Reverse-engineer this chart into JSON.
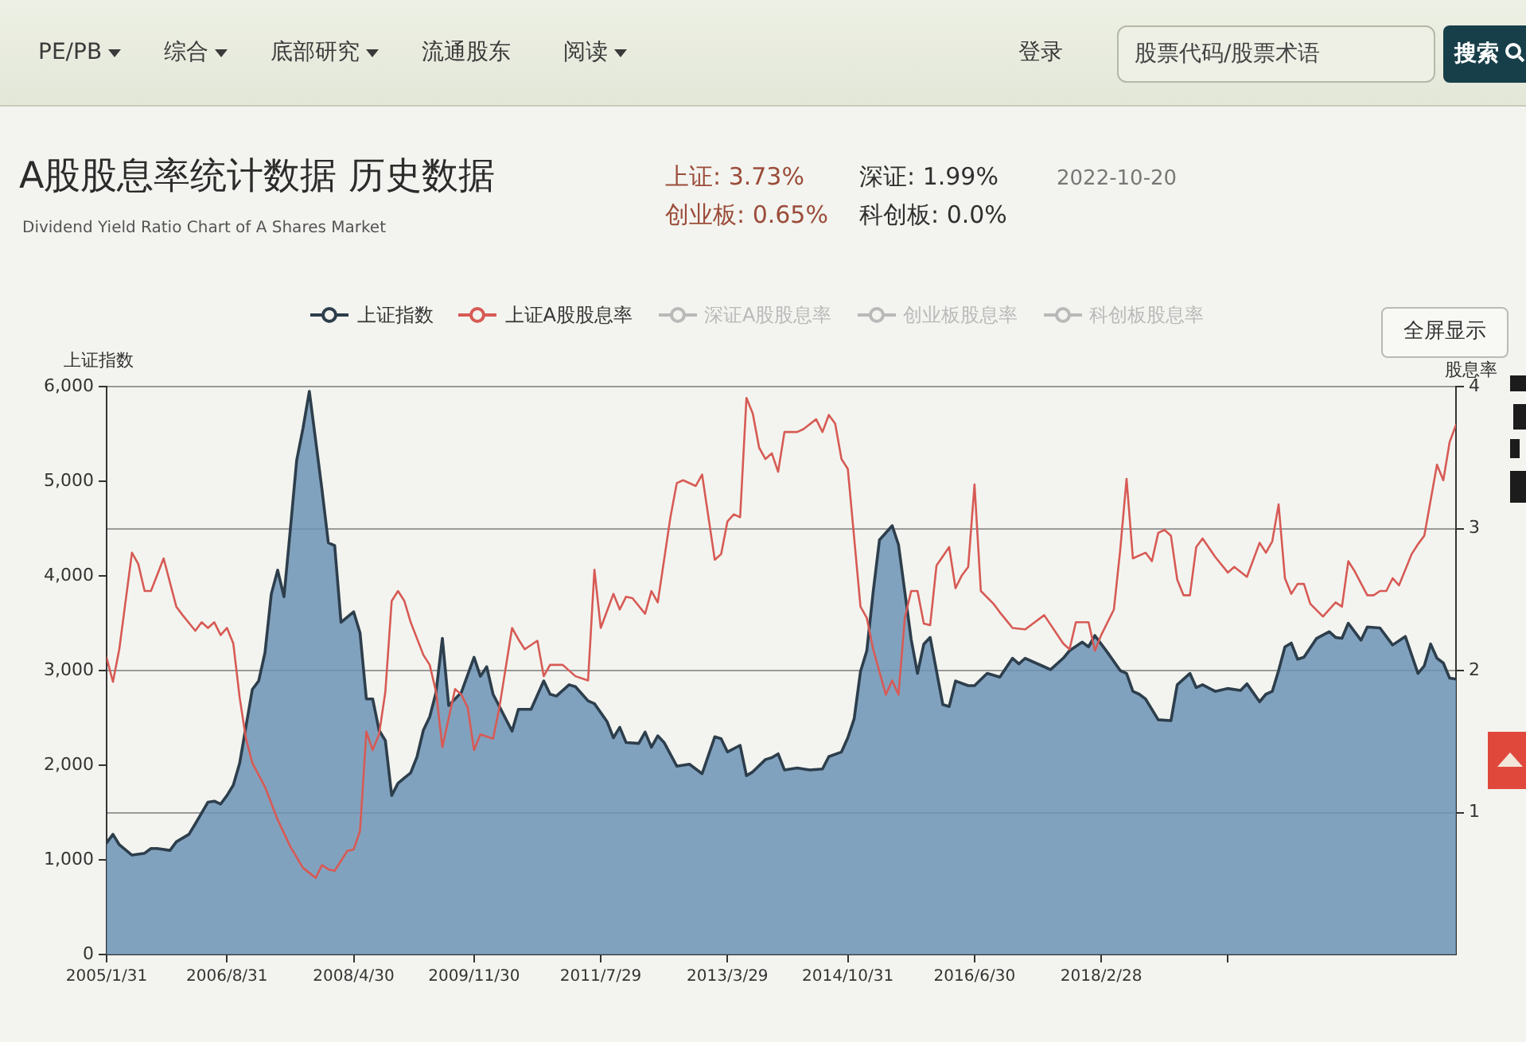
{
  "chart_data": {
    "type": "line",
    "title": "A股股息率统计数据 历史数据",
    "subtitle": "Dividend Yield Ratio Chart of A Shares Market",
    "ylabel": "上证指数",
    "y2label": "股息率",
    "annotations": [
      "PE/PB",
      "综合",
      "底部研究",
      "流通股东",
      "阅读",
      "登录",
      "股票代码/股票术语",
      "搜索",
      "上证: 3.73%",
      "深证: 1.99%",
      "2022-10-20",
      "创业板: 0.65%",
      "科创板: 0.0%",
      "全屏显示"
    ],
    "xlim": [
      "2005-01",
      "2022-10"
    ],
    "xticks": [
      {
        "value": "2005-01",
        "label": "2005/1/31"
      },
      {
        "value": "2006-08",
        "label": "2006/8/31"
      },
      {
        "value": "2008-04",
        "label": "2008/4/30"
      },
      {
        "value": "2009-11",
        "label": "2009/11/30"
      },
      {
        "value": "2011-07",
        "label": "2011/7/29"
      },
      {
        "value": "2013-03",
        "label": "2013/3/29"
      },
      {
        "value": "2014-10",
        "label": "2014/10/31"
      },
      {
        "value": "2016-06",
        "label": "2016/6/30"
      },
      {
        "value": "2018-02",
        "label": "2018/2/28"
      },
      {
        "value": "2019-10",
        "label": null
      }
    ],
    "ylim": [
      0,
      6000
    ],
    "yticks": [
      0,
      {
        "value": 1000,
        "label": "1,000"
      },
      {
        "value": 2000,
        "label": "2,000"
      },
      {
        "value": 3000,
        "label": "3,000"
      },
      {
        "value": 4000,
        "label": "4,000"
      },
      {
        "value": 5000,
        "label": "5,000"
      },
      {
        "value": 6000,
        "label": "6,000"
      }
    ],
    "y2lim": [
      0,
      4
    ],
    "y2ticks": [
      1,
      2,
      3,
      4
    ],
    "grid": "y2",
    "legend": "top",
    "series": [
      {
        "name": "上证指数",
        "type": "area",
        "color": "#6c93b5",
        "x": [
          "2005-01",
          "2005-02",
          "2005-03",
          "2005-05",
          "2005-07",
          "2005-08",
          "2005-09",
          "2005-11",
          "2005-12",
          "2006-02",
          "2006-03",
          "2006-05",
          "2006-06",
          "2006-07",
          "2006-08",
          "2006-09",
          "2006-10",
          "2006-11",
          "2006-12",
          "2007-01",
          "2007-02",
          "2007-03",
          "2007-04",
          "2007-05",
          "2007-06",
          "2007-07",
          "2007-08",
          "2007-09",
          "2007-11",
          "2007-12",
          "2008-01",
          "2008-02",
          "2008-04",
          "2008-05",
          "2008-06",
          "2008-07",
          "2008-08",
          "2008-09",
          "2008-10",
          "2008-11",
          "2009-01",
          "2009-02",
          "2009-03",
          "2009-04",
          "2009-05",
          "2009-06",
          "2009-07",
          "2009-09",
          "2009-11",
          "2009-12",
          "2010-01",
          "2010-02",
          "2010-05",
          "2010-06",
          "2010-08",
          "2010-10",
          "2010-11",
          "2010-12",
          "2011-02",
          "2011-03",
          "2011-05",
          "2011-06",
          "2011-08",
          "2011-09",
          "2011-10",
          "2011-11",
          "2012-01",
          "2012-02",
          "2012-03",
          "2012-04",
          "2012-05",
          "2012-07",
          "2012-09",
          "2012-11",
          "2013-01",
          "2013-02",
          "2013-03",
          "2013-05",
          "2013-06",
          "2013-07",
          "2013-09",
          "2013-10",
          "2013-11",
          "2013-12",
          "2014-02",
          "2014-04",
          "2014-06",
          "2014-07",
          "2014-09",
          "2014-10",
          "2014-11",
          "2014-12",
          "2015-01",
          "2015-02",
          "2015-03",
          "2015-05",
          "2015-06",
          "2015-08",
          "2015-09",
          "2015-10",
          "2015-11",
          "2016-01",
          "2016-02",
          "2016-03",
          "2016-05",
          "2016-06",
          "2016-08",
          "2016-10",
          "2016-12",
          "2017-01",
          "2017-02",
          "2017-05",
          "2017-06",
          "2017-08",
          "2017-09",
          "2017-11",
          "2017-12",
          "2018-01",
          "2018-03",
          "2018-05",
          "2018-06",
          "2018-07",
          "2018-08",
          "2018-09",
          "2018-11",
          "2019-01",
          "2019-02",
          "2019-04",
          "2019-05",
          "2019-06",
          "2019-08",
          "2019-10",
          "2019-12",
          "2020-01",
          "2020-03",
          "2020-04",
          "2020-05",
          "2020-06",
          "2020-07",
          "2020-08",
          "2020-09",
          "2020-10",
          "2020-12",
          "2021-02",
          "2021-03",
          "2021-04",
          "2021-05",
          "2021-07",
          "2021-08",
          "2021-10",
          "2021-12",
          "2022-02",
          "2022-04",
          "2022-05",
          "2022-06",
          "2022-07",
          "2022-08",
          "2022-09",
          "2022-10"
        ],
        "values": [
          1180,
          1270,
          1160,
          1050,
          1070,
          1120,
          1120,
          1100,
          1190,
          1270,
          1380,
          1610,
          1620,
          1590,
          1680,
          1790,
          2020,
          2410,
          2800,
          2890,
          3190,
          3810,
          4060,
          3780,
          4490,
          5220,
          5560,
          5950,
          4910,
          4350,
          4320,
          3510,
          3620,
          3400,
          2700,
          2700,
          2370,
          2260,
          1680,
          1810,
          1920,
          2090,
          2370,
          2510,
          2770,
          3340,
          2630,
          2770,
          3140,
          2940,
          3040,
          2750,
          2360,
          2590,
          2590,
          2890,
          2750,
          2730,
          2850,
          2830,
          2680,
          2650,
          2460,
          2290,
          2400,
          2240,
          2230,
          2350,
          2190,
          2310,
          2240,
          1990,
          2010,
          1910,
          2300,
          2280,
          2140,
          2210,
          1890,
          1930,
          2060,
          2080,
          2120,
          1950,
          1970,
          1950,
          1960,
          2090,
          2140,
          2290,
          2490,
          2990,
          3210,
          3830,
          4380,
          4530,
          4330,
          3330,
          2970,
          3280,
          3350,
          2640,
          2620,
          2890,
          2840,
          2840,
          2970,
          2930,
          3130,
          3070,
          3130,
          3040,
          3010,
          3130,
          3210,
          3300,
          3250,
          3370,
          3190,
          3000,
          2970,
          2780,
          2750,
          2700,
          2480,
          2470,
          2850,
          2970,
          2820,
          2850,
          2780,
          2810,
          2790,
          2860,
          2670,
          2750,
          2780,
          3000,
          3250,
          3290,
          3120,
          3140,
          3340,
          3410,
          3350,
          3340,
          3500,
          3320,
          3460,
          3450,
          3270,
          3360,
          2970,
          3050,
          3280,
          3130,
          3080,
          2920,
          2910
        ]
      },
      {
        "name": "上证A股股息率",
        "color": "#d75a55",
        "axis": "y2",
        "x": [
          "2005-01",
          "2005-02",
          "2005-03",
          "2005-05",
          "2005-06",
          "2005-07",
          "2005-08",
          "2005-10",
          "2005-12",
          "2006-01",
          "2006-03",
          "2006-04",
          "2006-05",
          "2006-06",
          "2006-07",
          "2006-08",
          "2006-09",
          "2006-10",
          "2006-11",
          "2006-12",
          "2007-02",
          "2007-04",
          "2007-06",
          "2007-08",
          "2007-10",
          "2007-11",
          "2007-12",
          "2008-01",
          "2008-03",
          "2008-04",
          "2008-05",
          "2008-06",
          "2008-07",
          "2008-08",
          "2008-09",
          "2008-10",
          "2008-11",
          "2008-12",
          "2009-01",
          "2009-03",
          "2009-04",
          "2009-05",
          "2009-06",
          "2009-08",
          "2009-09",
          "2009-10",
          "2009-11",
          "2009-12",
          "2010-02",
          "2010-03",
          "2010-05",
          "2010-06",
          "2010-07",
          "2010-09",
          "2010-10",
          "2010-11",
          "2011-01",
          "2011-03",
          "2011-05",
          "2011-06",
          "2011-07",
          "2011-09",
          "2011-10",
          "2011-11",
          "2011-12",
          "2012-02",
          "2012-03",
          "2012-04",
          "2012-06",
          "2012-07",
          "2012-08",
          "2012-10",
          "2012-11",
          "2013-01",
          "2013-02",
          "2013-03",
          "2013-04",
          "2013-05",
          "2013-06",
          "2013-07",
          "2013-08",
          "2013-09",
          "2013-10",
          "2013-11",
          "2013-12",
          "2014-02",
          "2014-03",
          "2014-05",
          "2014-06",
          "2014-07",
          "2014-08",
          "2014-09",
          "2014-10",
          "2014-12",
          "2015-01",
          "2015-02",
          "2015-04",
          "2015-05",
          "2015-06",
          "2015-07",
          "2015-08",
          "2015-09",
          "2015-10",
          "2015-11",
          "2015-12",
          "2016-02",
          "2016-03",
          "2016-04",
          "2016-05",
          "2016-06",
          "2016-07",
          "2016-09",
          "2016-10",
          "2016-12",
          "2017-02",
          "2017-05",
          "2017-08",
          "2017-09",
          "2017-10",
          "2017-12",
          "2018-01",
          "2018-02",
          "2018-04",
          "2018-05",
          "2018-06",
          "2018-07",
          "2018-09",
          "2018-10",
          "2018-11",
          "2018-12",
          "2019-01",
          "2019-02",
          "2019-03",
          "2019-04",
          "2019-05",
          "2019-06",
          "2019-08",
          "2019-10",
          "2019-11",
          "2020-01",
          "2020-03",
          "2020-04",
          "2020-05",
          "2020-06",
          "2020-07",
          "2020-08",
          "2020-09",
          "2020-10",
          "2020-11",
          "2021-01",
          "2021-03",
          "2021-04",
          "2021-05",
          "2021-06",
          "2021-08",
          "2021-09",
          "2021-10",
          "2021-11",
          "2021-12",
          "2022-01",
          "2022-03",
          "2022-04",
          "2022-05",
          "2022-07",
          "2022-08",
          "2022-09",
          "2022-10"
        ],
        "values": [
          2.09,
          1.92,
          2.15,
          2.83,
          2.75,
          2.56,
          2.56,
          2.79,
          2.45,
          2.39,
          2.28,
          2.34,
          2.3,
          2.34,
          2.25,
          2.3,
          2.19,
          1.81,
          1.52,
          1.35,
          1.18,
          0.95,
          0.76,
          0.61,
          0.54,
          0.63,
          0.6,
          0.59,
          0.73,
          0.74,
          0.87,
          1.57,
          1.44,
          1.55,
          1.85,
          2.49,
          2.56,
          2.49,
          2.34,
          2.11,
          2.04,
          1.85,
          1.46,
          1.87,
          1.83,
          1.74,
          1.44,
          1.55,
          1.52,
          1.74,
          2.3,
          2.22,
          2.15,
          2.21,
          1.96,
          2.04,
          2.04,
          1.96,
          1.93,
          2.71,
          2.3,
          2.54,
          2.43,
          2.52,
          2.51,
          2.4,
          2.56,
          2.48,
          3.08,
          3.32,
          3.34,
          3.3,
          3.38,
          2.78,
          2.82,
          3.05,
          3.1,
          3.08,
          3.92,
          3.81,
          3.57,
          3.49,
          3.53,
          3.4,
          3.68,
          3.68,
          3.7,
          3.77,
          3.68,
          3.8,
          3.74,
          3.49,
          3.42,
          2.45,
          2.37,
          2.15,
          1.83,
          1.93,
          1.83,
          2.37,
          2.56,
          2.56,
          2.33,
          2.32,
          2.74,
          2.87,
          2.58,
          2.67,
          2.73,
          3.31,
          2.56,
          2.47,
          2.41,
          2.3,
          2.29,
          2.39,
          2.19,
          2.15,
          2.34,
          2.34,
          2.14,
          2.25,
          2.43,
          2.85,
          3.35,
          2.79,
          2.83,
          2.77,
          2.97,
          2.99,
          2.95,
          2.64,
          2.53,
          2.53,
          2.87,
          2.93,
          2.8,
          2.69,
          2.73,
          2.66,
          2.9,
          2.83,
          2.91,
          3.17,
          2.65,
          2.54,
          2.61,
          2.61,
          2.47,
          2.38,
          2.48,
          2.45,
          2.77,
          2.7,
          2.53,
          2.53,
          2.56,
          2.56,
          2.65,
          2.6,
          2.82,
          2.89,
          2.95,
          3.45,
          3.34,
          3.61,
          3.73
        ]
      },
      {
        "name": "深证A股股息率",
        "color": "#b9b9b9"
      },
      {
        "name": "创业板股息率",
        "color": "#b9b9b9"
      },
      {
        "name": "科创板股息率",
        "color": "#b9b9b9"
      }
    ]
  }
}
